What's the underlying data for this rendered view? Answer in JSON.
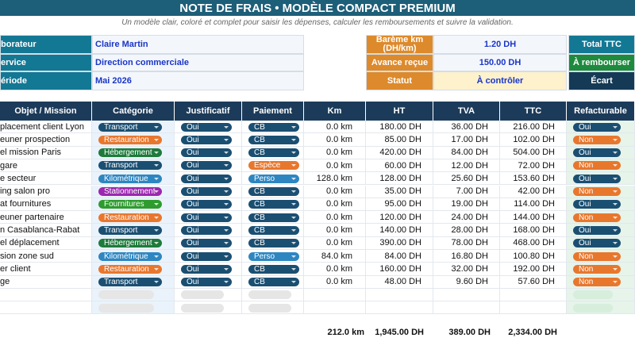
{
  "header": {
    "title": "NOTE DE FRAIS • MODÈLE COMPACT PREMIUM",
    "subtitle": "Un modèle clair, coloré et complet pour saisir les dépenses, calculer les remboursements et suivre la validation."
  },
  "info": {
    "left": [
      {
        "label": "borateur",
        "value": "Claire Martin"
      },
      {
        "label": "ervice",
        "value": "Direction commerciale"
      },
      {
        "label": "ériode",
        "value": "Mai 2026"
      }
    ],
    "middle": [
      {
        "label": "Barème km (DH/km)",
        "value": "1.20 DH"
      },
      {
        "label": "Avance reçue",
        "value": "150.00 DH"
      },
      {
        "label": "Statut",
        "value": "À contrôler"
      }
    ],
    "right": [
      "Total TTC",
      "À rembourser",
      "Écart"
    ]
  },
  "table": {
    "columns": [
      "Objet / Mission",
      "Catégorie",
      "Justificatif",
      "Paiement",
      "Km",
      "HT",
      "TVA",
      "TTC",
      "Refacturable"
    ],
    "rows": [
      [
        "placement client Lyon",
        "Transport",
        "Oui",
        "CB",
        "0.0 km",
        "180.00 DH",
        "36.00 DH",
        "216.00 DH",
        "Oui"
      ],
      [
        "euner prospection",
        "Restauration",
        "Oui",
        "CB",
        "0.0 km",
        "85.00 DH",
        "17.00 DH",
        "102.00 DH",
        "Non"
      ],
      [
        "el mission Paris",
        "Hébergement",
        "Oui",
        "CB",
        "0.0 km",
        "420.00 DH",
        "84.00 DH",
        "504.00 DH",
        "Oui"
      ],
      [
        "gare",
        "Transport",
        "Oui",
        "Espèce",
        "0.0 km",
        "60.00 DH",
        "12.00 DH",
        "72.00 DH",
        "Non"
      ],
      [
        "e secteur",
        "Kilométrique",
        "Oui",
        "Perso",
        "128.0 km",
        "128.00 DH",
        "25.60 DH",
        "153.60 DH",
        "Oui"
      ],
      [
        "ing salon pro",
        "Stationnement",
        "Oui",
        "CB",
        "0.0 km",
        "35.00 DH",
        "7.00 DH",
        "42.00 DH",
        "Non"
      ],
      [
        "at fournitures",
        "Fournitures",
        "Oui",
        "CB",
        "0.0 km",
        "95.00 DH",
        "19.00 DH",
        "114.00 DH",
        "Oui"
      ],
      [
        "euner partenaire",
        "Restauration",
        "Oui",
        "CB",
        "0.0 km",
        "120.00 DH",
        "24.00 DH",
        "144.00 DH",
        "Non"
      ],
      [
        "n Casablanca-Rabat",
        "Transport",
        "Oui",
        "CB",
        "0.0 km",
        "140.00 DH",
        "28.00 DH",
        "168.00 DH",
        "Oui"
      ],
      [
        "el déplacement",
        "Hébergement",
        "Oui",
        "CB",
        "0.0 km",
        "390.00 DH",
        "78.00 DH",
        "468.00 DH",
        "Oui"
      ],
      [
        "sion zone sud",
        "Kilométrique",
        "Oui",
        "Perso",
        "84.0 km",
        "84.00 DH",
        "16.80 DH",
        "100.80 DH",
        "Non"
      ],
      [
        "er client",
        "Restauration",
        "Oui",
        "CB",
        "0.0 km",
        "160.00 DH",
        "32.00 DH",
        "192.00 DH",
        "Non"
      ],
      [
        "ge",
        "Transport",
        "Oui",
        "CB",
        "0.0 km",
        "48.00 DH",
        "9.60 DH",
        "57.60 DH",
        "Non"
      ]
    ],
    "totals": [
      "212.0 km",
      "1,945.00 DH",
      "389.00 DH",
      "2,334.00 DH"
    ],
    "pill_colors": {
      "Transport": "#1b4f72",
      "Restauration": "#e8772e",
      "Hébergement": "#1e7b3c",
      "Kilométrique": "#2e86c1",
      "Stationnement": "#9c27b0",
      "Fournitures": "#2e9b2e",
      "Oui": "#1b4f72",
      "Non": "#e8772e",
      "CB": "#1b4f72",
      "Espèce": "#e8772e",
      "Perso": "#2e86c1"
    }
  }
}
